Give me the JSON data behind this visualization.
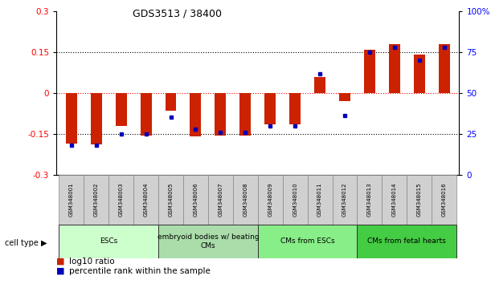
{
  "title": "GDS3513 / 38400",
  "samples": [
    "GSM348001",
    "GSM348002",
    "GSM348003",
    "GSM348004",
    "GSM348005",
    "GSM348006",
    "GSM348007",
    "GSM348008",
    "GSM348009",
    "GSM348010",
    "GSM348011",
    "GSM348012",
    "GSM348013",
    "GSM348014",
    "GSM348015",
    "GSM348016"
  ],
  "log10_ratio": [
    -0.185,
    -0.19,
    -0.12,
    -0.155,
    -0.065,
    -0.16,
    -0.155,
    -0.155,
    -0.115,
    -0.115,
    0.06,
    -0.03,
    0.16,
    0.18,
    0.14,
    0.18
  ],
  "percentile_rank": [
    18,
    18,
    25,
    25,
    35,
    28,
    26,
    26,
    30,
    30,
    62,
    36,
    75,
    78,
    70,
    78
  ],
  "cell_types": [
    {
      "label": "ESCs",
      "start": 0,
      "end": 4,
      "color": "#ccffcc"
    },
    {
      "label": "embryoid bodies w/ beating\nCMs",
      "start": 4,
      "end": 8,
      "color": "#aaddaa"
    },
    {
      "label": "CMs from ESCs",
      "start": 8,
      "end": 12,
      "color": "#88ee88"
    },
    {
      "label": "CMs from fetal hearts",
      "start": 12,
      "end": 16,
      "color": "#44cc44"
    }
  ],
  "bar_color": "#cc2200",
  "dot_color": "#0000bb",
  "ylim": [
    -0.3,
    0.3
  ],
  "yticks_left": [
    -0.3,
    -0.15,
    0.0,
    0.15,
    0.3
  ],
  "yticks_right": [
    0,
    25,
    50,
    75,
    100
  ],
  "background_color": "#ffffff"
}
